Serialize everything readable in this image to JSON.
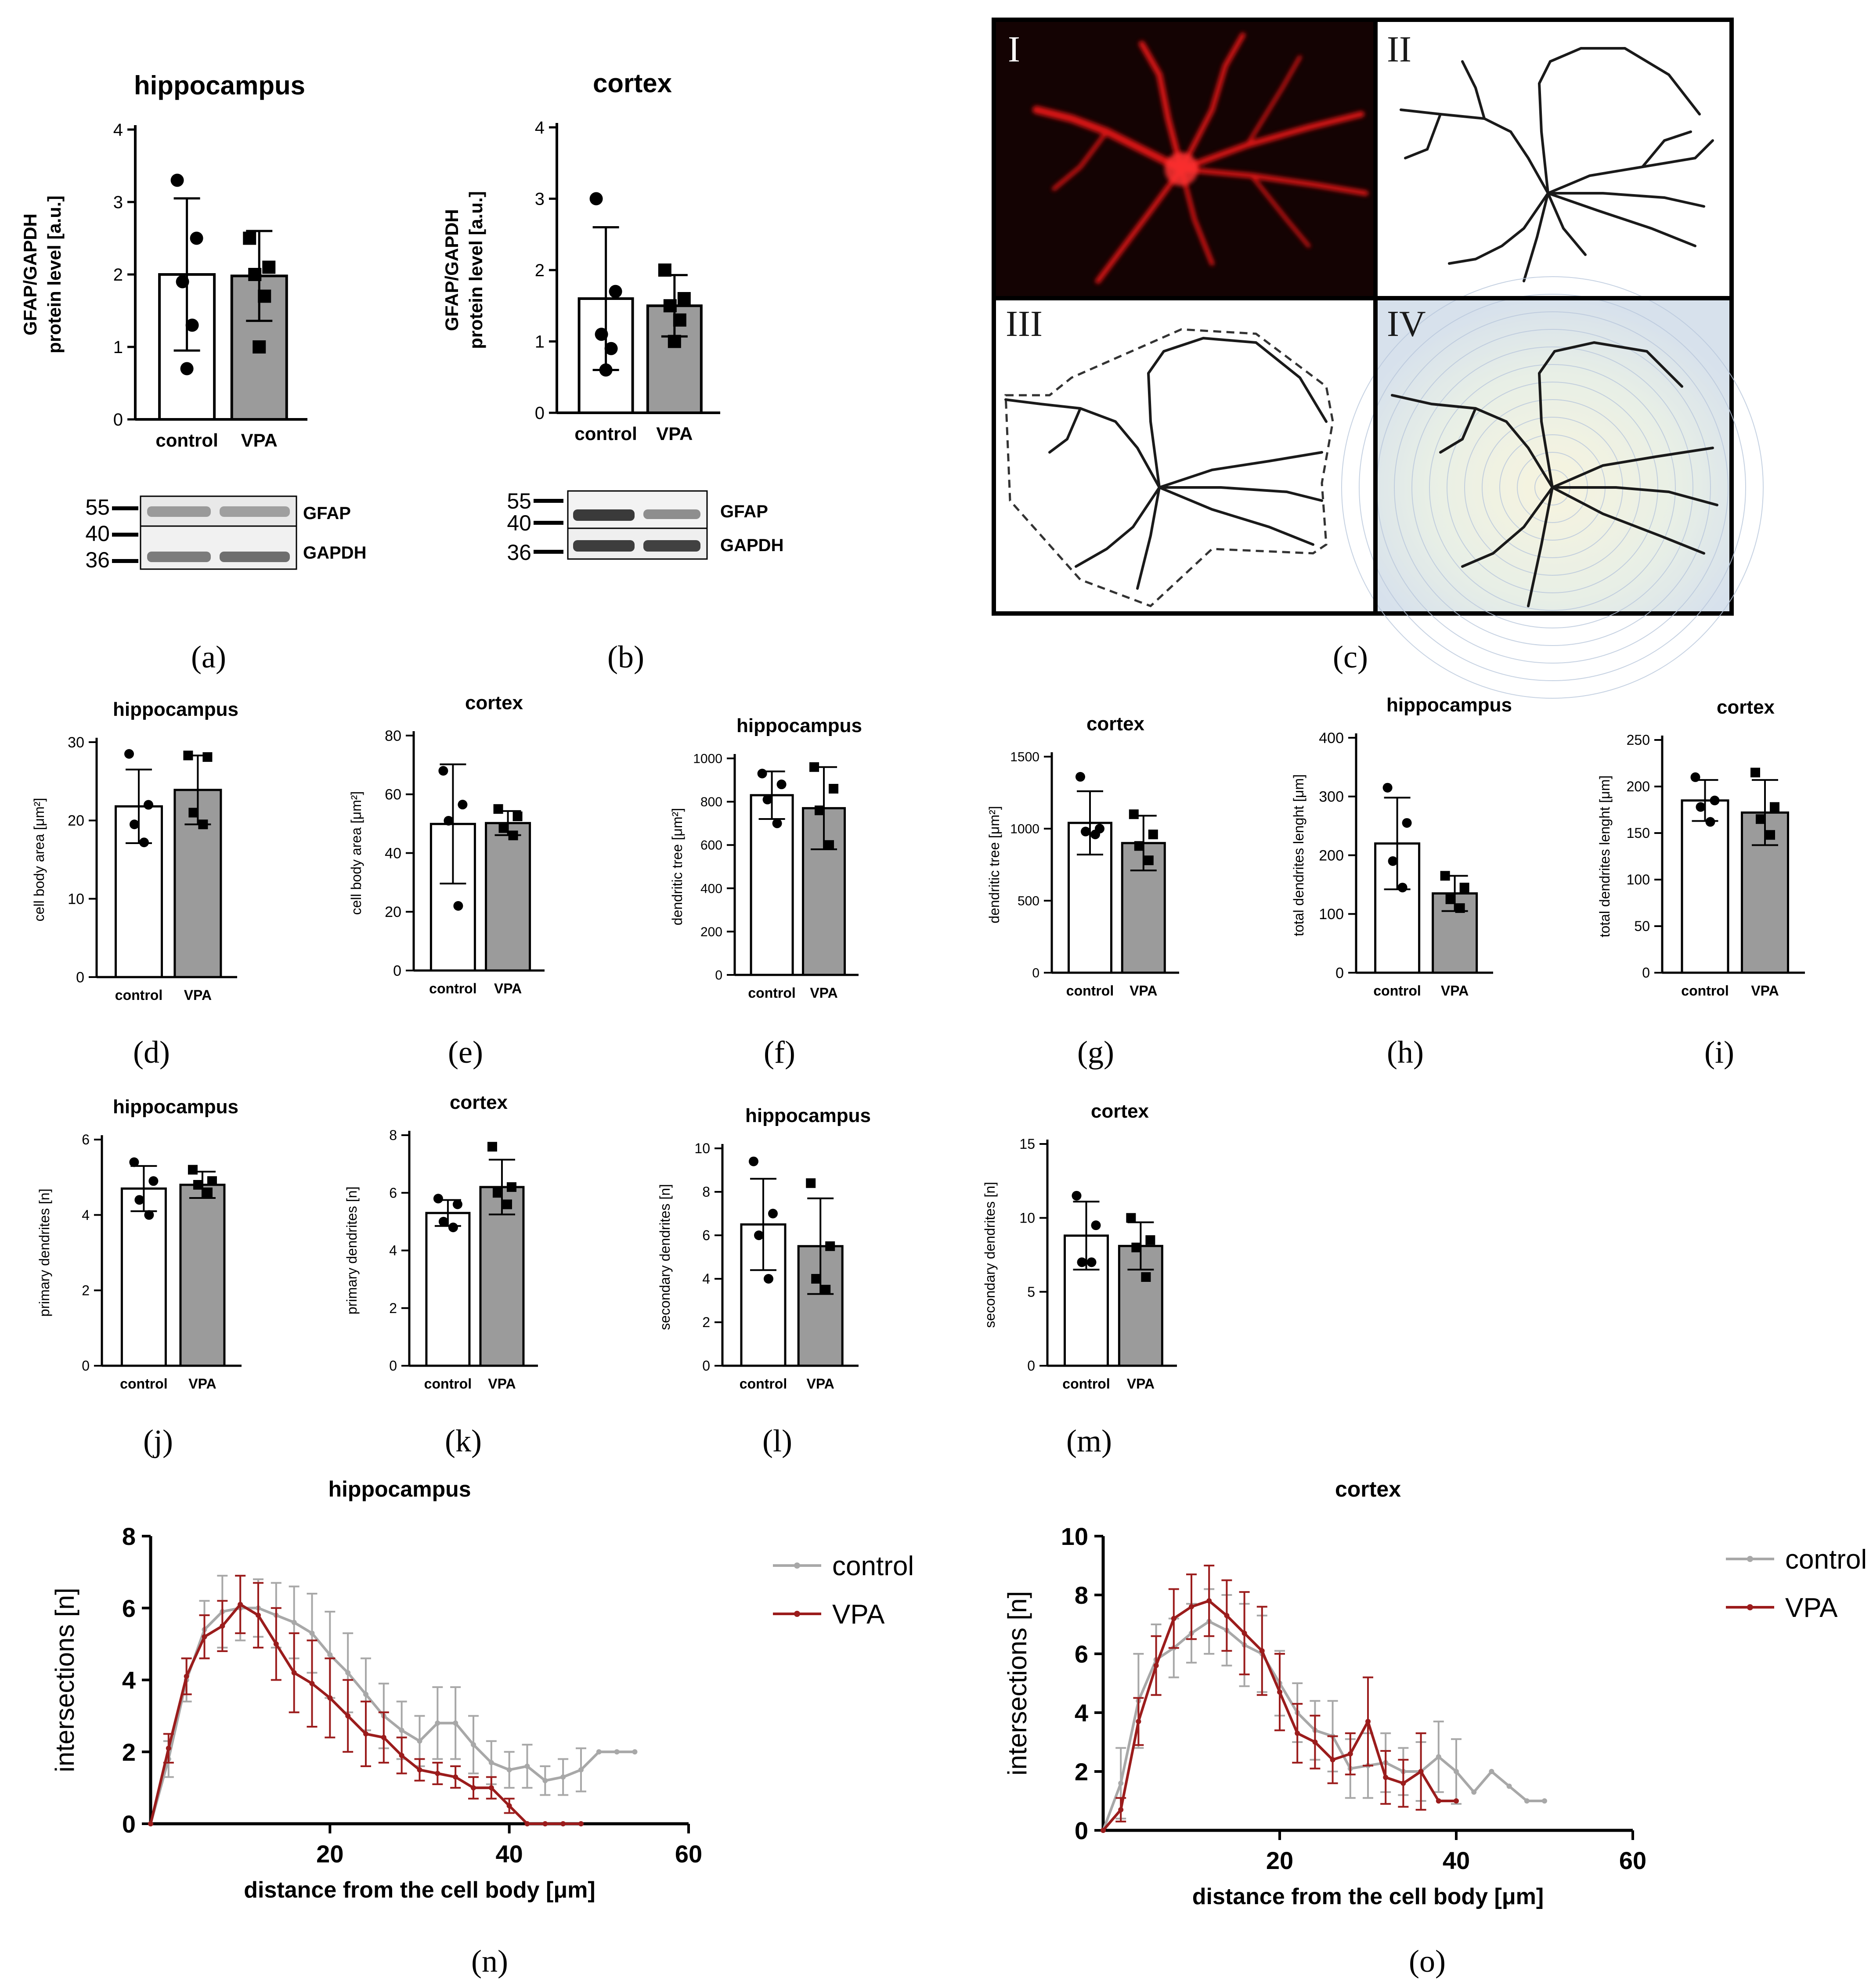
{
  "figure": {
    "panel_labels": [
      "(a)",
      "(b)",
      "(c)",
      "(d)",
      "(e)",
      "(f)",
      "(g)",
      "(h)",
      "(i)",
      "(j)",
      "(k)",
      "(l)",
      "(m)",
      "(n)",
      "(o)"
    ],
    "blot_a": {
      "markers": [
        "55",
        "40",
        "36"
      ],
      "bands": [
        "GFAP",
        "GAPDH"
      ]
    },
    "blot_b": {
      "markers": [
        "55",
        "40",
        "36"
      ],
      "bands": [
        "GFAP",
        "GAPDH"
      ]
    },
    "panel_c": {
      "subpanel_labels": [
        "I",
        "II",
        "III",
        "IV"
      ]
    },
    "colors": {
      "control_bar": "#ffffff",
      "vpa_bar": "#9b9b9b",
      "sholl_control": "#a8a8a8",
      "sholl_vpa": "#9b1c1c",
      "confocal_bg": "#140303",
      "confocal_signal": "#e31212"
    }
  },
  "chart_data": [
    {
      "id": "a",
      "type": "bar",
      "title": "hippocampus",
      "ylabel": [
        "GFAP/GAPDH",
        "protein level [a.u.]"
      ],
      "categories": [
        "control",
        "VPA"
      ],
      "values": [
        2.0,
        1.98
      ],
      "sd": [
        1.05,
        0.62
      ],
      "points": [
        [
          3.3,
          2.5,
          1.9,
          1.3,
          0.7
        ],
        [
          2.5,
          2.1,
          2.0,
          1.7,
          1.0
        ]
      ],
      "ylim": [
        0,
        4
      ],
      "yticks": [
        0,
        1,
        2,
        3,
        4
      ]
    },
    {
      "id": "b",
      "type": "bar",
      "title": "cortex",
      "ylabel": [
        "GFAP/GAPDH",
        "protein level [a.u.]"
      ],
      "categories": [
        "control",
        "VPA"
      ],
      "values": [
        1.6,
        1.5
      ],
      "sd": [
        1.0,
        0.43
      ],
      "points": [
        [
          3.0,
          1.7,
          1.1,
          0.9,
          0.6
        ],
        [
          2.0,
          1.6,
          1.5,
          1.3,
          1.0
        ]
      ],
      "ylim": [
        0,
        4
      ],
      "yticks": [
        0,
        1,
        2,
        3,
        4
      ]
    },
    {
      "id": "d",
      "type": "bar",
      "title": "hippocampus",
      "ylabel": [
        "cell body area [μm²]"
      ],
      "categories": [
        "control",
        "VPA"
      ],
      "values": [
        21.8,
        23.9
      ],
      "sd": [
        4.7,
        4.4
      ],
      "points": [
        [
          28.5,
          22.0,
          19.5,
          17.2
        ],
        [
          28.3,
          28.1,
          21.0,
          19.5
        ]
      ],
      "ylim": [
        0,
        30
      ],
      "yticks": [
        0,
        10,
        20,
        30
      ]
    },
    {
      "id": "e",
      "type": "bar",
      "title": "cortex",
      "ylabel": [
        "cell body area [μm²]"
      ],
      "categories": [
        "control",
        "VPA"
      ],
      "values": [
        49.9,
        50.2
      ],
      "sd": [
        20.3,
        4.1
      ],
      "points": [
        [
          68.0,
          56.5,
          51.0,
          22.0
        ],
        [
          55.0,
          52.5,
          48.5,
          46.0
        ]
      ],
      "ylim": [
        0,
        80
      ],
      "yticks": [
        0,
        20,
        40,
        60,
        80
      ]
    },
    {
      "id": "f",
      "type": "bar",
      "title": "hippocampus",
      "ylabel": [
        "dendritic tree [μm²]"
      ],
      "categories": [
        "control",
        "VPA"
      ],
      "values": [
        830,
        770
      ],
      "sd": [
        110,
        190
      ],
      "points": [
        [
          930,
          880,
          810,
          700
        ],
        [
          960,
          860,
          760,
          600
        ]
      ],
      "ylim": [
        0,
        1000
      ],
      "yticks": [
        0,
        200,
        400,
        600,
        800,
        1000
      ]
    },
    {
      "id": "g",
      "type": "bar",
      "title": "cortex",
      "ylabel": [
        "dendritic tree [μm²]"
      ],
      "categories": [
        "control",
        "VPA"
      ],
      "values": [
        1040,
        900
      ],
      "sd": [
        220,
        190
      ],
      "points": [
        [
          1360,
          1000,
          980,
          960
        ],
        [
          1100,
          960,
          880,
          780
        ]
      ],
      "ylim": [
        0,
        1500
      ],
      "yticks": [
        0,
        500,
        1000,
        1500
      ]
    },
    {
      "id": "h",
      "type": "bar",
      "title": "hippocampus",
      "ylabel": [
        "total dendrites lenght [μm]"
      ],
      "categories": [
        "control",
        "VPA"
      ],
      "values": [
        220,
        135
      ],
      "sd": [
        78,
        30
      ],
      "points": [
        [
          315,
          255,
          190,
          145
        ],
        [
          165,
          145,
          125,
          110
        ]
      ],
      "ylim": [
        0,
        400
      ],
      "yticks": [
        0,
        100,
        200,
        300,
        400
      ]
    },
    {
      "id": "i",
      "type": "bar",
      "title": "cortex",
      "ylabel": [
        "total dendrites lenght [μm]"
      ],
      "categories": [
        "control",
        "VPA"
      ],
      "values": [
        185,
        172
      ],
      "sd": [
        22,
        35
      ],
      "points": [
        [
          210,
          185,
          178,
          162
        ],
        [
          215,
          178,
          165,
          148
        ]
      ],
      "ylim": [
        0,
        250
      ],
      "yticks": [
        0,
        50,
        100,
        150,
        200,
        250
      ]
    },
    {
      "id": "j",
      "type": "bar",
      "title": "hippocampus",
      "ylabel": [
        "primary dendrites [n]"
      ],
      "categories": [
        "control",
        "VPA"
      ],
      "values": [
        4.7,
        4.8
      ],
      "sd": [
        0.6,
        0.35
      ],
      "points": [
        [
          5.4,
          4.9,
          4.4,
          4.0
        ],
        [
          5.2,
          4.9,
          4.8,
          4.6
        ]
      ],
      "ylim": [
        0,
        6
      ],
      "yticks": [
        0,
        2,
        4,
        6
      ]
    },
    {
      "id": "k",
      "type": "bar",
      "title": "cortex",
      "ylabel": [
        "primary dendrites [n]"
      ],
      "categories": [
        "control",
        "VPA"
      ],
      "values": [
        5.3,
        6.2
      ],
      "sd": [
        0.45,
        0.95
      ],
      "points": [
        [
          5.8,
          5.6,
          5.0,
          4.8
        ],
        [
          7.6,
          6.2,
          6.0,
          5.6
        ]
      ],
      "ylim": [
        0,
        8
      ],
      "yticks": [
        0,
        2,
        4,
        6,
        8
      ]
    },
    {
      "id": "l",
      "type": "bar",
      "title": "hippocampus",
      "ylabel": [
        "secondary dendrites [n]"
      ],
      "categories": [
        "control",
        "VPA"
      ],
      "values": [
        6.5,
        5.5
      ],
      "sd": [
        2.1,
        2.2
      ],
      "points": [
        [
          9.4,
          7.0,
          6.0,
          4.0
        ],
        [
          8.4,
          5.5,
          4.0,
          3.5
        ]
      ],
      "ylim": [
        0,
        10
      ],
      "yticks": [
        0,
        2,
        4,
        6,
        8,
        10
      ]
    },
    {
      "id": "m",
      "type": "bar",
      "title": "cortex",
      "ylabel": [
        "secondary dendrites [n]"
      ],
      "categories": [
        "control",
        "VPA"
      ],
      "values": [
        8.8,
        8.1
      ],
      "sd": [
        2.3,
        1.6
      ],
      "points": [
        [
          11.5,
          9.5,
          7.0,
          7.0
        ],
        [
          10.0,
          8.5,
          8.0,
          6.0
        ]
      ],
      "ylim": [
        0,
        15
      ],
      "yticks": [
        0,
        5,
        10,
        15
      ]
    },
    {
      "id": "n",
      "type": "line",
      "title": "hippocampus",
      "xlabel": "distance from the cell body [μm]",
      "ylabel": "intersections [n]",
      "xlim": [
        0,
        60
      ],
      "ylim": [
        0,
        8
      ],
      "xticks": [
        20,
        40,
        60
      ],
      "yticks": [
        0,
        2,
        4,
        6,
        8
      ],
      "series": [
        {
          "name": "control",
          "x": [
            0,
            2,
            4,
            6,
            8,
            10,
            12,
            14,
            16,
            18,
            20,
            22,
            24,
            26,
            28,
            30,
            32,
            34,
            36,
            38,
            40,
            42,
            44,
            46,
            48,
            50,
            52,
            54
          ],
          "y": [
            0,
            1.8,
            4.0,
            5.4,
            5.9,
            6.0,
            6.0,
            5.8,
            5.6,
            5.3,
            4.7,
            4.2,
            3.6,
            3.0,
            2.6,
            2.3,
            2.8,
            2.8,
            2.2,
            1.7,
            1.5,
            1.6,
            1.2,
            1.3,
            1.5,
            2.0,
            2.0,
            2.0
          ],
          "err": [
            0,
            0.5,
            0.6,
            0.8,
            1.0,
            0.9,
            0.8,
            0.9,
            1.0,
            1.1,
            1.2,
            1.1,
            1.0,
            0.9,
            0.8,
            0.7,
            1.0,
            1.0,
            0.8,
            0.6,
            0.5,
            0.6,
            0.4,
            0.5,
            0.6,
            0,
            0,
            0
          ]
        },
        {
          "name": "VPA",
          "x": [
            0,
            2,
            4,
            6,
            8,
            10,
            12,
            14,
            16,
            18,
            20,
            22,
            24,
            26,
            28,
            30,
            32,
            34,
            36,
            38,
            40,
            42,
            44,
            46,
            48
          ],
          "y": [
            0,
            2.1,
            4.1,
            5.2,
            5.5,
            6.1,
            5.8,
            5.0,
            4.2,
            3.9,
            3.5,
            3.0,
            2.5,
            2.4,
            1.9,
            1.5,
            1.4,
            1.3,
            1.0,
            1.0,
            0.5,
            0,
            0,
            0,
            0
          ],
          "err": [
            0,
            0.4,
            0.5,
            0.6,
            0.7,
            0.8,
            0.9,
            1.0,
            1.1,
            1.2,
            1.1,
            1.0,
            0.9,
            0.7,
            0.5,
            0.3,
            0.3,
            0.3,
            0.3,
            0.3,
            0.2,
            0,
            0,
            0,
            0
          ]
        }
      ]
    },
    {
      "id": "o",
      "type": "line",
      "title": "cortex",
      "xlabel": "distance from the cell body [μm]",
      "ylabel": "intersections [n]",
      "xlim": [
        0,
        60
      ],
      "ylim": [
        0,
        10
      ],
      "xticks": [
        20,
        40,
        60
      ],
      "yticks": [
        0,
        2,
        4,
        6,
        8,
        10
      ],
      "series": [
        {
          "name": "control",
          "x": [
            0,
            2,
            4,
            6,
            8,
            10,
            12,
            14,
            16,
            18,
            20,
            22,
            24,
            26,
            28,
            30,
            32,
            34,
            36,
            38,
            40,
            42,
            44,
            46,
            48,
            50
          ],
          "y": [
            0,
            1.6,
            4.4,
            5.8,
            6.2,
            6.7,
            7.1,
            6.8,
            6.3,
            6.0,
            5.0,
            4.0,
            3.4,
            3.2,
            2.1,
            2.2,
            2.3,
            2.0,
            2.0,
            2.5,
            2.0,
            1.3,
            2.0,
            1.5,
            1.0,
            1.0
          ],
          "err": [
            0,
            1.2,
            1.6,
            1.2,
            1.0,
            1.0,
            1.1,
            1.2,
            1.4,
            1.3,
            1.1,
            1.0,
            1.0,
            1.2,
            1.0,
            1.1,
            1.0,
            0.8,
            1.0,
            1.2,
            1.1,
            0,
            0,
            0,
            0,
            0
          ]
        },
        {
          "name": "VPA",
          "x": [
            0,
            2,
            4,
            6,
            8,
            10,
            12,
            14,
            16,
            18,
            20,
            22,
            24,
            26,
            28,
            30,
            32,
            34,
            36,
            38,
            40
          ],
          "y": [
            0,
            0.7,
            3.7,
            5.6,
            7.2,
            7.6,
            7.8,
            7.3,
            6.7,
            6.1,
            4.7,
            3.3,
            3.0,
            2.4,
            2.6,
            3.7,
            1.8,
            1.6,
            2.0,
            1.0,
            1.0
          ],
          "err": [
            0,
            0.4,
            0.8,
            1.0,
            1.0,
            1.1,
            1.2,
            1.2,
            1.4,
            1.5,
            1.3,
            1.0,
            0.9,
            0.8,
            0.7,
            1.5,
            0.9,
            0.8,
            1.3,
            0,
            0
          ]
        }
      ]
    }
  ]
}
